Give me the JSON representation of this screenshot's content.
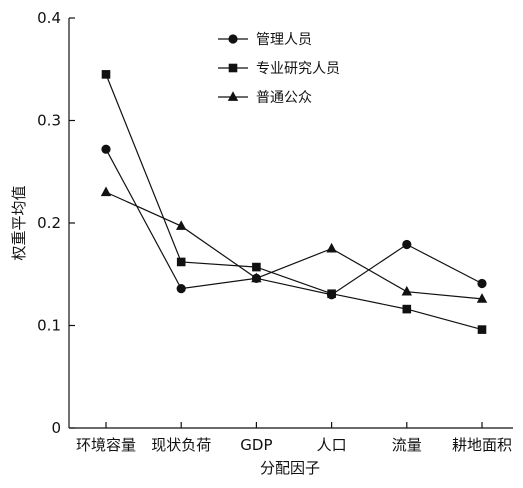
{
  "chart_data": {
    "type": "line",
    "title": "",
    "xlabel": "分配因子",
    "ylabel": "权重平均值",
    "categories": [
      "环境容量",
      "现状负荷",
      "GDP",
      "人口",
      "流量",
      "耕地面积"
    ],
    "ylim": [
      0,
      0.4
    ],
    "yticks": [
      "0",
      "0.1",
      "0.2",
      "0.3",
      "0.4"
    ],
    "grid": false,
    "legend_position": "top-center",
    "series": [
      {
        "name": "管理人员",
        "marker": "circle",
        "values": [
          0.272,
          0.136,
          0.146,
          0.13,
          0.179,
          0.141
        ]
      },
      {
        "name": "专业研究人员",
        "marker": "square",
        "values": [
          0.345,
          0.162,
          0.157,
          0.131,
          0.116,
          0.096
        ]
      },
      {
        "name": "普通公众",
        "marker": "triangle",
        "values": [
          0.23,
          0.197,
          0.146,
          0.175,
          0.133,
          0.126
        ]
      }
    ],
    "colors": {
      "line": "#111111",
      "axis": "#111111"
    }
  }
}
